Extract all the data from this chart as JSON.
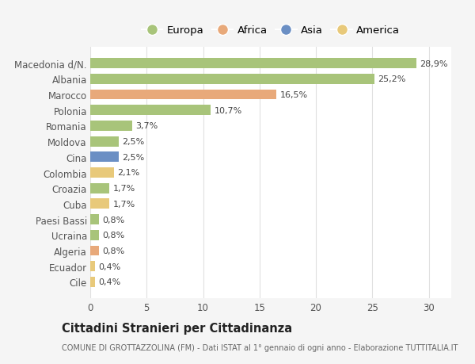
{
  "categories": [
    "Cile",
    "Ecuador",
    "Algeria",
    "Ucraina",
    "Paesi Bassi",
    "Cuba",
    "Croazia",
    "Colombia",
    "Cina",
    "Moldova",
    "Romania",
    "Polonia",
    "Marocco",
    "Albania",
    "Macedonia d/N."
  ],
  "values": [
    0.4,
    0.4,
    0.8,
    0.8,
    0.8,
    1.7,
    1.7,
    2.1,
    2.5,
    2.5,
    3.7,
    10.7,
    16.5,
    25.2,
    28.9
  ],
  "labels": [
    "0,4%",
    "0,4%",
    "0,8%",
    "0,8%",
    "0,8%",
    "1,7%",
    "1,7%",
    "2,1%",
    "2,5%",
    "2,5%",
    "3,7%",
    "10,7%",
    "16,5%",
    "25,2%",
    "28,9%"
  ],
  "colors": [
    "#e8c97a",
    "#e8c97a",
    "#e8a97a",
    "#a8c47a",
    "#a8c47a",
    "#e8c97a",
    "#a8c47a",
    "#e8c97a",
    "#6b8fc4",
    "#a8c47a",
    "#a8c47a",
    "#a8c47a",
    "#e8a97a",
    "#a8c47a",
    "#a8c47a"
  ],
  "legend_labels": [
    "Europa",
    "Africa",
    "Asia",
    "America"
  ],
  "legend_colors": [
    "#a8c47a",
    "#e8a97a",
    "#6b8fc4",
    "#e8c97a"
  ],
  "title": "Cittadini Stranieri per Cittadinanza",
  "subtitle": "COMUNE DI GROTTAZZOLINA (FM) - Dati ISTAT al 1° gennaio di ogni anno - Elaborazione TUTTITALIA.IT",
  "xlim": [
    0,
    32
  ],
  "xticks": [
    0,
    5,
    10,
    15,
    20,
    25,
    30
  ],
  "background_color": "#f5f5f5",
  "bar_background": "#ffffff",
  "grid_color": "#e0e0e0"
}
